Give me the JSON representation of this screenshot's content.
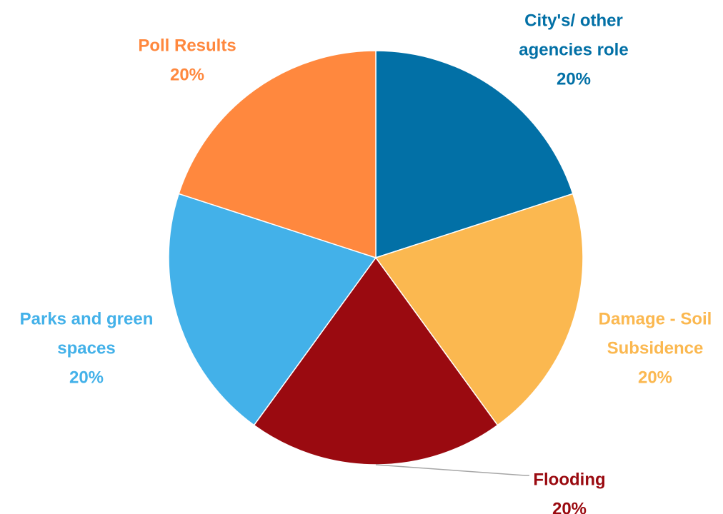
{
  "chart_data": {
    "type": "pie",
    "title": "",
    "slices": [
      {
        "label_lines": [
          "City's/ other",
          "agencies role"
        ],
        "value": 20,
        "percent_label": "20%",
        "color": "#0270A6"
      },
      {
        "label_lines": [
          "Damage - Soil",
          "Subsidence"
        ],
        "value": 20,
        "percent_label": "20%",
        "color": "#FBB850"
      },
      {
        "label_lines": [
          "Flooding"
        ],
        "value": 20,
        "percent_label": "20%",
        "color": "#9A0A10"
      },
      {
        "label_lines": [
          "Parks and green",
          "spaces"
        ],
        "value": 20,
        "percent_label": "20%",
        "color": "#43B1E9"
      },
      {
        "label_lines": [
          "Poll Results"
        ],
        "value": 20,
        "percent_label": "20%",
        "color": "#FF883E"
      }
    ],
    "start_angle_deg": 0,
    "direction": "clockwise",
    "legend": "none",
    "data_labels": "outside",
    "leader_lines": [
      "Flooding"
    ]
  },
  "colors": {
    "leader_line": "#A6A6A6",
    "background": "#FFFFFF"
  }
}
